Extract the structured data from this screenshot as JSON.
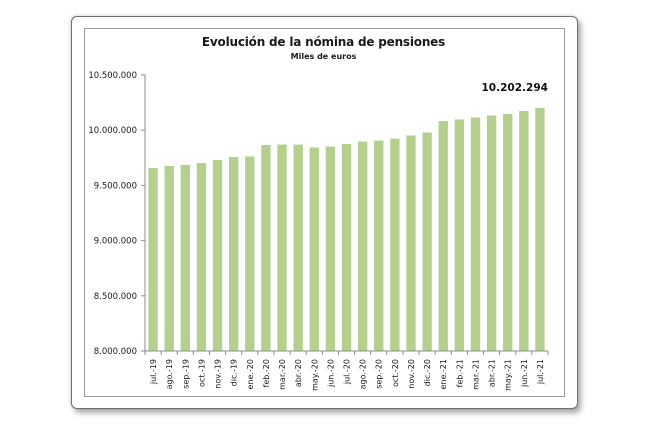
{
  "chart_data": {
    "type": "bar",
    "title": "Evolución de la nómina de pensiones",
    "subtitle": "Miles de euros",
    "xlabel": "",
    "ylabel": "",
    "ylim": [
      8000000,
      10500000
    ],
    "yticks": [
      8000000,
      8500000,
      9000000,
      9500000,
      10000000,
      10500000
    ],
    "ytick_labels": [
      "8.000.000",
      "8.500.000",
      "9.000.000",
      "9.500.000",
      "10.000.000",
      "10.500.000"
    ],
    "grid": false,
    "legend": "none",
    "bar_color": "#b4d08c",
    "categories": [
      "jul.-19",
      "ago.-19",
      "sep.-19",
      "oct.-19",
      "nov.-19",
      "dic.-19",
      "ene.-20",
      "feb.-20",
      "mar.-20",
      "abr.-20",
      "may.-20",
      "jun.-20",
      "jul.-20",
      "ago.-20",
      "sep.-20",
      "oct.-20",
      "nov.-20",
      "dic.-20",
      "ene.-21",
      "feb.-21",
      "mar.-21",
      "abr.-21",
      "may.-21",
      "jun.-21",
      "jul.-21"
    ],
    "values": [
      9657000,
      9676000,
      9685000,
      9703000,
      9730000,
      9757000,
      9762000,
      9866000,
      9870000,
      9870000,
      9843000,
      9852000,
      9875000,
      9897000,
      9906000,
      9924000,
      9952000,
      9979000,
      10083000,
      10097000,
      10115000,
      10133000,
      10147000,
      10174000,
      10202294
    ],
    "annotations": [
      {
        "category": "jul.-21",
        "text": "10.202.294"
      }
    ]
  }
}
